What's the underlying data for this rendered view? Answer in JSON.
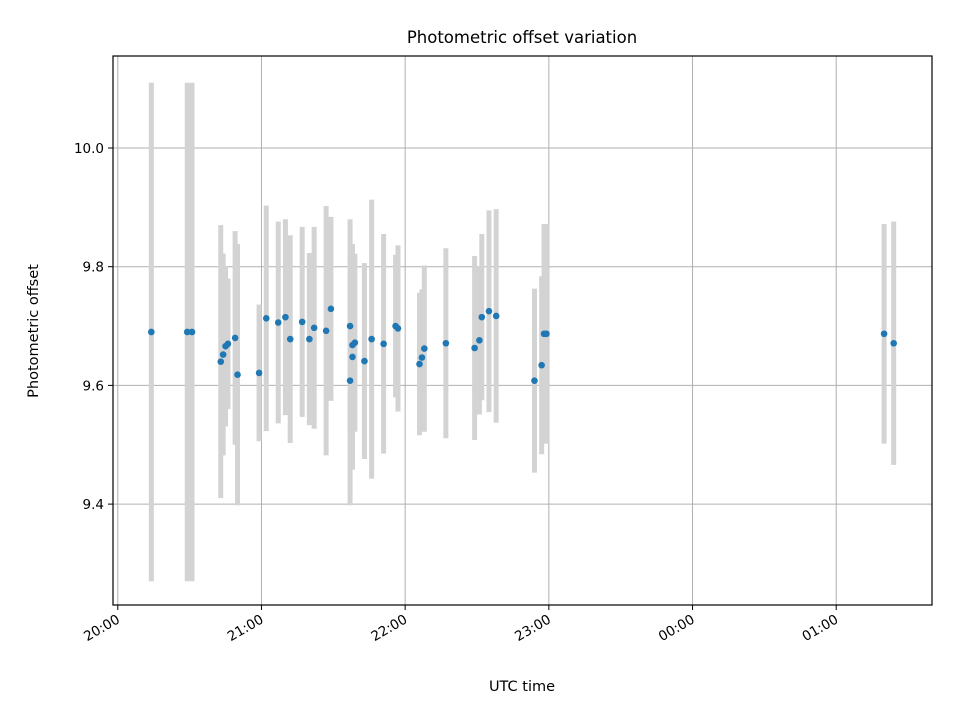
{
  "chart_data": {
    "type": "scatter",
    "title": "Photometric offset variation",
    "xlabel": "UTC time",
    "ylabel": "Photometric offset",
    "x_ticks": [
      "20:00",
      "21:00",
      "22:00",
      "23:00",
      "00:00",
      "01:00"
    ],
    "y_ticks": [
      "9.4",
      "9.6",
      "9.8",
      "10.0"
    ],
    "xlim": [
      "19:58",
      "01:40"
    ],
    "ylim": [
      9.23,
      10.155
    ],
    "grid": true,
    "colors": {
      "marker": "#1f77b4",
      "errorbar": "#d3d3d3",
      "grid": "#b0b0b0"
    },
    "points": [
      {
        "t": "20:14",
        "y": 9.69,
        "err": 0.42
      },
      {
        "t": "20:29",
        "y": 9.69,
        "err": 0.42
      },
      {
        "t": "20:31",
        "y": 9.69,
        "err": 0.42
      },
      {
        "t": "20:43",
        "y": 9.64,
        "err": 0.23
      },
      {
        "t": "20:44",
        "y": 9.652,
        "err": 0.17
      },
      {
        "t": "20:45",
        "y": 9.666,
        "err": 0.135
      },
      {
        "t": "20:46",
        "y": 9.67,
        "err": 0.11
      },
      {
        "t": "20:49",
        "y": 9.68,
        "err": 0.18
      },
      {
        "t": "20:50",
        "y": 9.618,
        "err": 0.22
      },
      {
        "t": "20:59",
        "y": 9.621,
        "err": 0.115
      },
      {
        "t": "21:02",
        "y": 9.713,
        "err": 0.19
      },
      {
        "t": "21:07",
        "y": 9.706,
        "err": 0.17
      },
      {
        "t": "21:10",
        "y": 9.715,
        "err": 0.165
      },
      {
        "t": "21:12",
        "y": 9.678,
        "err": 0.175
      },
      {
        "t": "21:17",
        "y": 9.707,
        "err": 0.16
      },
      {
        "t": "21:20",
        "y": 9.678,
        "err": 0.145
      },
      {
        "t": "21:22",
        "y": 9.697,
        "err": 0.17
      },
      {
        "t": "21:27",
        "y": 9.692,
        "err": 0.21
      },
      {
        "t": "21:29",
        "y": 9.729,
        "err": 0.155
      },
      {
        "t": "21:37",
        "y": 9.7,
        "err": 0.18
      },
      {
        "t": "21:37",
        "y": 9.608,
        "err": 0.21
      },
      {
        "t": "21:38",
        "y": 9.668,
        "err": 0.14
      },
      {
        "t": "21:38",
        "y": 9.648,
        "err": 0.19
      },
      {
        "t": "21:39",
        "y": 9.672,
        "err": 0.15
      },
      {
        "t": "21:43",
        "y": 9.641,
        "err": 0.165
      },
      {
        "t": "21:46",
        "y": 9.678,
        "err": 0.235
      },
      {
        "t": "21:51",
        "y": 9.67,
        "err": 0.185
      },
      {
        "t": "21:56",
        "y": 9.7,
        "err": 0.12
      },
      {
        "t": "21:57",
        "y": 9.696,
        "err": 0.14
      },
      {
        "t": "22:06",
        "y": 9.636,
        "err": 0.12
      },
      {
        "t": "22:07",
        "y": 9.647,
        "err": 0.115
      },
      {
        "t": "22:08",
        "y": 9.662,
        "err": 0.14
      },
      {
        "t": "22:17",
        "y": 9.671,
        "err": 0.16
      },
      {
        "t": "22:29",
        "y": 9.663,
        "err": 0.155
      },
      {
        "t": "22:31",
        "y": 9.676,
        "err": 0.125
      },
      {
        "t": "22:32",
        "y": 9.715,
        "err": 0.14
      },
      {
        "t": "22:35",
        "y": 9.725,
        "err": 0.17
      },
      {
        "t": "22:38",
        "y": 9.717,
        "err": 0.18
      },
      {
        "t": "22:54",
        "y": 9.608,
        "err": 0.155
      },
      {
        "t": "22:57",
        "y": 9.634,
        "err": 0.15
      },
      {
        "t": "22:58",
        "y": 9.687,
        "err": 0.185
      },
      {
        "t": "22:59",
        "y": 9.687,
        "err": 0.185
      },
      {
        "t": "01:20",
        "y": 9.687,
        "err": 0.185
      },
      {
        "t": "01:24",
        "y": 9.671,
        "err": 0.205
      }
    ]
  }
}
